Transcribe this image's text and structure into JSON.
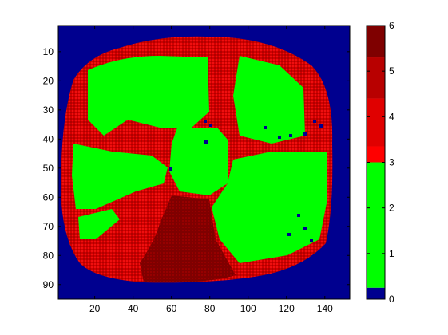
{
  "chart_data": {
    "type": "heatmap",
    "title": "",
    "xlabel": "",
    "ylabel": "",
    "xlim": [
      1,
      153
    ],
    "ylim": [
      1,
      95
    ],
    "y_direction": "reversed",
    "x_ticks": [
      20,
      40,
      60,
      80,
      100,
      120,
      140
    ],
    "y_ticks": [
      10,
      20,
      30,
      40,
      50,
      60,
      70,
      80,
      90
    ],
    "colorbar": {
      "range": [
        0,
        6
      ],
      "ticks": [
        0,
        1,
        2,
        3,
        4,
        5,
        6
      ],
      "segments": [
        {
          "from": 0,
          "to": 0.25,
          "color": "#00008f"
        },
        {
          "from": 0.25,
          "to": 3,
          "color": "#00ff00"
        },
        {
          "from": 3,
          "to": 3.35,
          "color": "#ff0000"
        },
        {
          "from": 3.35,
          "to": 4.4,
          "color": "#e00000"
        },
        {
          "from": 4.4,
          "to": 5.3,
          "color": "#b80000"
        },
        {
          "from": 5.3,
          "to": 6,
          "color": "#7f0000"
        }
      ]
    },
    "regions": {
      "background_value": 0,
      "blob_value": 3.8,
      "green_value": 1.8,
      "dark_wedge_value": 5.6,
      "blue_speckle_value": 0
    },
    "colors": {
      "background": "#00008f",
      "green": "#00ff00",
      "red": "#dd0000",
      "dark_red": "#7f0000"
    }
  }
}
